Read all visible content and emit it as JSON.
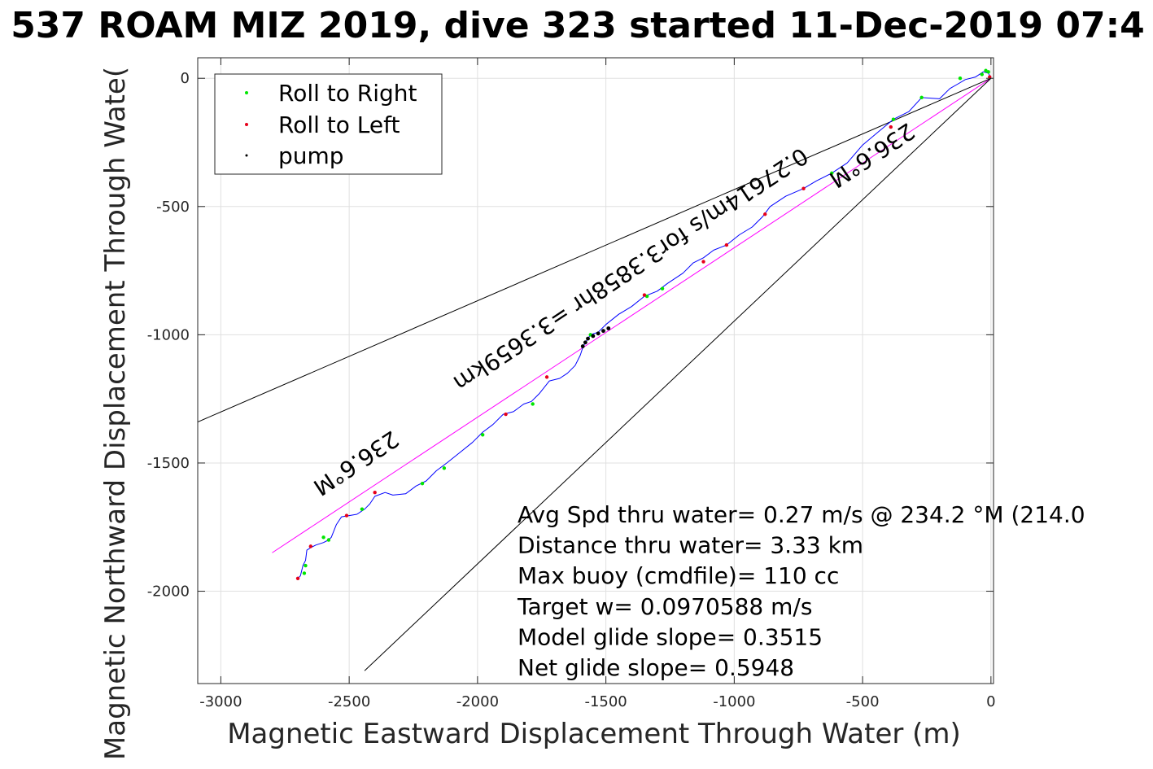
{
  "chart_data": {
    "type": "line",
    "title": "537 ROAM MIZ 2019, dive 323 started 11-Dec-2019 07:4",
    "xlabel": "Magnetic Eastward Displacement Through Water (m)",
    "ylabel": "Magnetic Northward Displacement Through Wate(",
    "xlim": [
      -3090,
      10
    ],
    "ylim": [
      -2360,
      80
    ],
    "xticks": [
      -3000,
      -2500,
      -2000,
      -1500,
      -1000,
      -500,
      0
    ],
    "yticks": [
      0,
      -500,
      -1000,
      -1500,
      -2000
    ],
    "grid": true,
    "legend": {
      "placement": "top-left",
      "entries": [
        {
          "label": "Roll to Right",
          "color": "#00e600"
        },
        {
          "label": "Roll to Left",
          "color": "#e6001a"
        },
        {
          "label": "pump",
          "color": "#000000"
        }
      ]
    },
    "track": {
      "name": "glider track",
      "color": "#0000ff",
      "x": [
        0,
        -10,
        -30,
        -60,
        -100,
        -125,
        -160,
        -200,
        -270,
        -320,
        -380,
        -440,
        -500,
        -560,
        -620,
        -680,
        -730,
        -800,
        -860,
        -890,
        -930,
        -980,
        -1030,
        -1080,
        -1120,
        -1160,
        -1200,
        -1260,
        -1300,
        -1350,
        -1400,
        -1450,
        -1500,
        -1530,
        -1560,
        -1580,
        -1590,
        -1600,
        -1620,
        -1650,
        -1680,
        -1720,
        -1760,
        -1790,
        -1820,
        -1860,
        -1900,
        -1940,
        -1980,
        -2020,
        -2070,
        -2120,
        -2160,
        -2200,
        -2240,
        -2280,
        -2330,
        -2360,
        -2400,
        -2420,
        -2440,
        -2470,
        -2500,
        -2530,
        -2550,
        -2570,
        -2580,
        -2600,
        -2630,
        -2650,
        -2665,
        -2670,
        -2680,
        -2690,
        -2700
      ],
      "y": [
        0,
        20,
        25,
        5,
        -5,
        -20,
        -40,
        -80,
        -75,
        -130,
        -160,
        -210,
        -260,
        -330,
        -370,
        -400,
        -430,
        -460,
        -500,
        -540,
        -580,
        -610,
        -650,
        -670,
        -700,
        -720,
        -760,
        -800,
        -830,
        -850,
        -890,
        -920,
        -960,
        -990,
        -1000,
        -1030,
        -1050,
        -1080,
        -1120,
        -1150,
        -1170,
        -1180,
        -1230,
        -1260,
        -1270,
        -1300,
        -1310,
        -1350,
        -1380,
        -1420,
        -1460,
        -1500,
        -1530,
        -1570,
        -1590,
        -1620,
        -1625,
        -1615,
        -1630,
        -1660,
        -1680,
        -1700,
        -1705,
        -1710,
        -1740,
        -1790,
        -1800,
        -1810,
        -1820,
        -1830,
        -1840,
        -1880,
        -1900,
        -1940,
        -1950
      ]
    },
    "roll_right": {
      "color": "#00e600",
      "x": [
        -10,
        -20,
        -35,
        -120,
        -270,
        -380,
        -620,
        -1280,
        -1340,
        -1560,
        -1785,
        -1980,
        -2130,
        -2215,
        -2450,
        -2580,
        -2600,
        -2670,
        -2675
      ],
      "y": [
        25,
        30,
        15,
        0,
        -75,
        -160,
        -370,
        -820,
        -850,
        -1000,
        -1270,
        -1390,
        -1520,
        -1580,
        -1680,
        -1800,
        -1790,
        -1900,
        -1930
      ]
    },
    "roll_left": {
      "color": "#e6001a",
      "x": [
        -5,
        -390,
        -730,
        -880,
        -1030,
        -1120,
        -1350,
        -1730,
        -1890,
        -2400,
        -2510,
        -2650,
        -2700
      ],
      "y": [
        5,
        -190,
        -430,
        -530,
        -650,
        -715,
        -845,
        -1165,
        -1310,
        -1615,
        -1705,
        -1825,
        -1950
      ]
    },
    "pump": {
      "color": "#000000",
      "x": [
        -1490,
        -1510,
        -1530,
        -1550,
        -1570,
        -1580,
        -1590
      ],
      "y": [
        -975,
        -985,
        -995,
        -1005,
        -1015,
        -1030,
        -1045
      ]
    },
    "reference_lines": [
      {
        "name": "heading-line",
        "color": "#ff00ff",
        "x": [
          0,
          -2800
        ],
        "y": [
          0,
          -1850
        ]
      },
      {
        "name": "cone-line-upper",
        "color": "#000000",
        "x": [
          0,
          -3090
        ],
        "y": [
          0,
          -1340
        ]
      },
      {
        "name": "cone-line-lower",
        "color": "#000000",
        "x": [
          0,
          -2440
        ],
        "y": [
          0,
          -2310
        ]
      }
    ],
    "annotations": [
      {
        "name": "upper-heading-label",
        "text": "236.6°M",
        "x": -480,
        "y": -275,
        "angle": 146.4
      },
      {
        "name": "lower-heading-label",
        "text": "236.6°M",
        "x": -2490,
        "y": -1475,
        "angle": 146.4
      },
      {
        "name": "speed-distance-label",
        "text": "0.27614m/s for3.3858hr =3.3659km",
        "x": -1420,
        "y": -720,
        "angle": 146.4
      }
    ],
    "stats": [
      "Avg Spd thru water=  0.27 m/s @ 234.2 °M (214.0",
      "Distance thru water=  3.33 km",
      "Max buoy (cmdfile)= 110 cc",
      "Target w= 0.0970588 m/s",
      "Model glide slope= 0.3515",
      "Net glide slope= 0.5948"
    ]
  }
}
